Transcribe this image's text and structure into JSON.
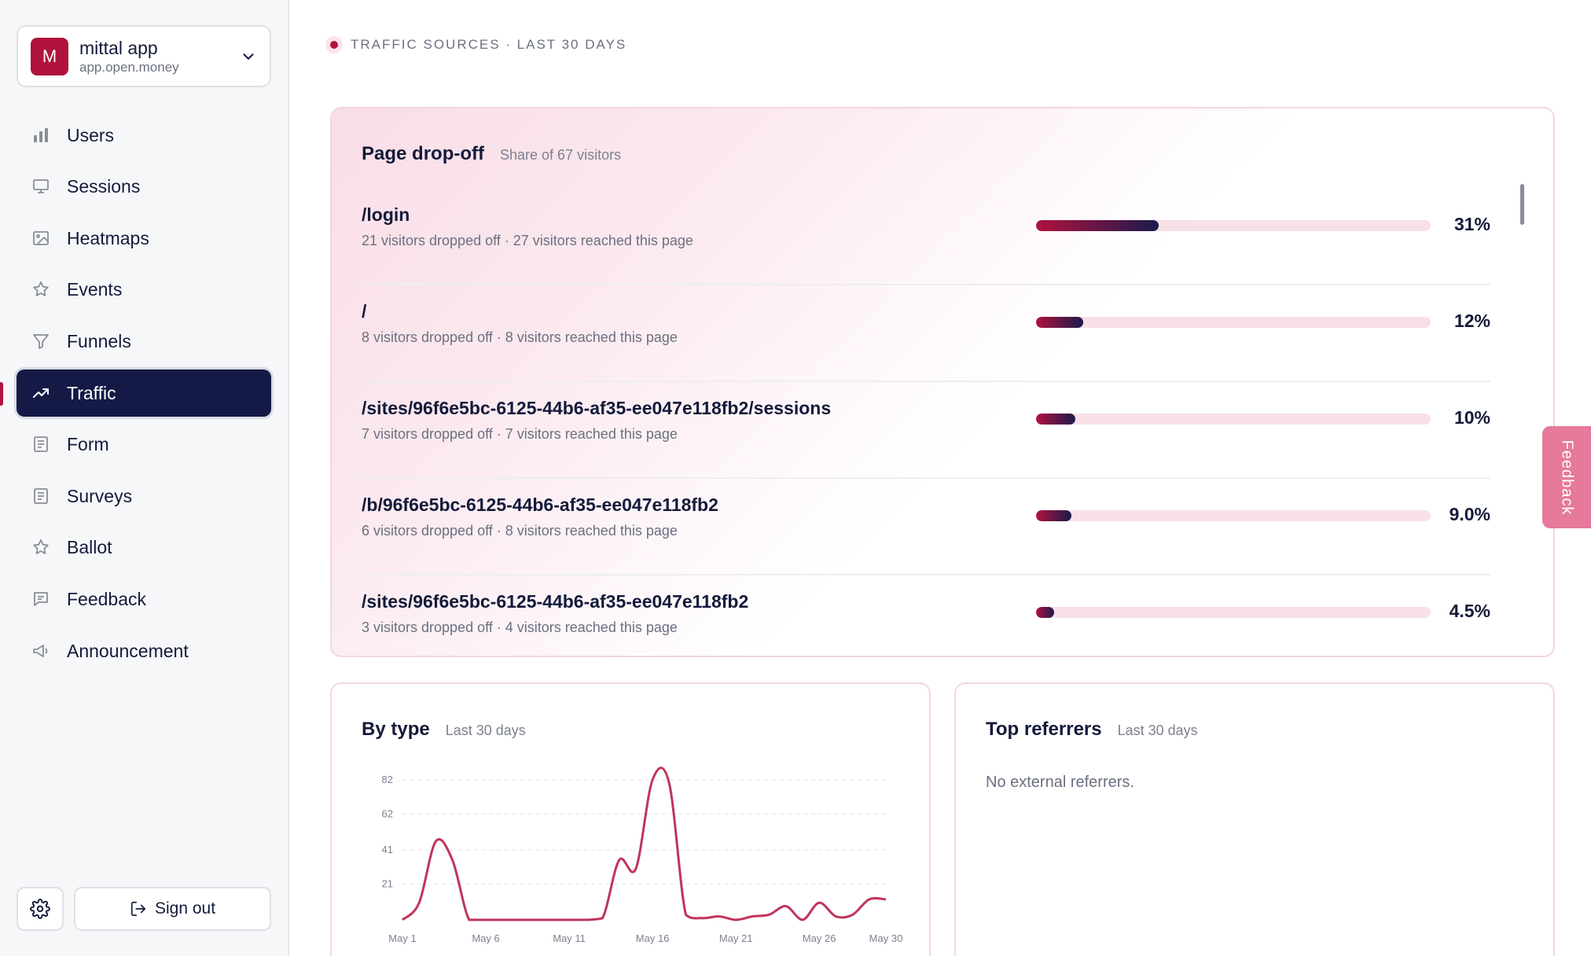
{
  "app": {
    "avatar_letter": "M",
    "name": "mittal app",
    "domain": "app.open.money"
  },
  "nav": {
    "items": [
      {
        "label": "Users",
        "icon": "bar-chart-icon"
      },
      {
        "label": "Sessions",
        "icon": "monitor-icon"
      },
      {
        "label": "Heatmaps",
        "icon": "image-icon"
      },
      {
        "label": "Events",
        "icon": "star-icon"
      },
      {
        "label": "Funnels",
        "icon": "filter-icon"
      },
      {
        "label": "Traffic",
        "icon": "trending-up-icon",
        "active": true
      },
      {
        "label": "Form",
        "icon": "form-icon"
      },
      {
        "label": "Surveys",
        "icon": "survey-icon"
      },
      {
        "label": "Ballot",
        "icon": "star-icon"
      },
      {
        "label": "Feedback",
        "icon": "message-icon"
      },
      {
        "label": "Announcement",
        "icon": "megaphone-icon"
      }
    ],
    "settings_icon": "gear-icon",
    "signout_label": "Sign out"
  },
  "section_label": "TRAFFIC SOURCES · LAST 30 DAYS",
  "dropoff": {
    "title": "Page drop-off",
    "subtitle": "Share of 67 visitors",
    "rows": [
      {
        "path": "/login",
        "detail": "21 visitors dropped off · 27 visitors reached this page",
        "pct_label": "31%",
        "share": 0.31
      },
      {
        "path": "/",
        "detail": "8 visitors dropped off · 8 visitors reached this page",
        "pct_label": "12%",
        "share": 0.12
      },
      {
        "path": "/sites/96f6e5bc-6125-44b6-af35-ee047e118fb2/sessions",
        "detail": "7 visitors dropped off · 7 visitors reached this page",
        "pct_label": "10%",
        "share": 0.1
      },
      {
        "path": "/b/96f6e5bc-6125-44b6-af35-ee047e118fb2",
        "detail": "6 visitors dropped off · 8 visitors reached this page",
        "pct_label": "9.0%",
        "share": 0.09
      },
      {
        "path": "/sites/96f6e5bc-6125-44b6-af35-ee047e118fb2",
        "detail": "3 visitors dropped off · 4 visitors reached this page",
        "pct_label": "4.5%",
        "share": 0.045
      }
    ]
  },
  "by_type": {
    "title": "By type",
    "subtitle": "Last 30 days"
  },
  "referrers": {
    "title": "Top referrers",
    "subtitle": "Last 30 days",
    "empty_text": "No external referrers."
  },
  "feedback_tab": "Feedback",
  "colors": {
    "brand": "#b0123e",
    "nav_active": "#141a45",
    "line": "#c0345a"
  },
  "chart_data": {
    "type": "line",
    "title": "",
    "xlabel": "",
    "ylabel": "",
    "x_ticks": [
      "May 1",
      "May 6",
      "May 11",
      "May 16",
      "May 21",
      "May 26",
      "May 30"
    ],
    "y_ticks": [
      21,
      41,
      62,
      82
    ],
    "ylim": [
      0,
      82
    ],
    "grid": true,
    "x": [
      "May 1",
      "May 2",
      "May 3",
      "May 4",
      "May 5",
      "May 6",
      "May 7",
      "May 8",
      "May 9",
      "May 10",
      "May 11",
      "May 12",
      "May 13",
      "May 14",
      "May 15",
      "May 16",
      "May 17",
      "May 18",
      "May 19",
      "May 20",
      "May 21",
      "May 22",
      "May 23",
      "May 24",
      "May 25",
      "May 26",
      "May 27",
      "May 28",
      "May 29",
      "May 30"
    ],
    "series": [
      {
        "values": [
          0,
          10,
          46,
          35,
          0,
          0,
          0,
          0,
          0,
          0,
          0,
          0,
          1,
          35,
          30,
          82,
          80,
          3,
          1,
          2,
          0,
          2,
          3,
          8,
          0,
          10,
          2,
          3,
          12,
          12
        ]
      }
    ]
  }
}
